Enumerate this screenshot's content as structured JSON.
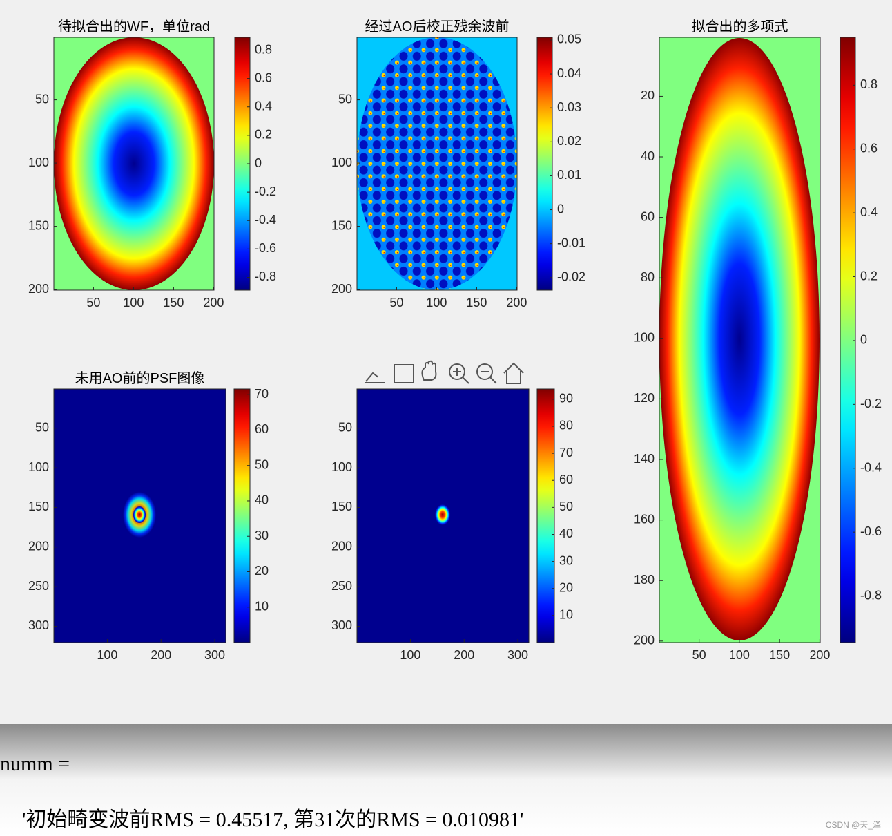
{
  "chart_data": [
    {
      "type": "heatmap",
      "title": "待拟合出的WF，单位rad",
      "xlim": [
        0.5,
        200.5
      ],
      "ylim": [
        0.5,
        200.5
      ],
      "xticks": [
        50,
        100,
        150,
        200
      ],
      "yticks": [
        50,
        100,
        150,
        200
      ],
      "clim": [
        -0.89,
        0.89
      ],
      "cticks": [
        -0.8,
        -0.6,
        -0.4,
        -0.2,
        0,
        0.2,
        0.4,
        0.6,
        0.8
      ],
      "colormap": "jet"
    },
    {
      "type": "heatmap",
      "title": "经过AO后校正残余波前",
      "xlim": [
        0.5,
        200.5
      ],
      "ylim": [
        0.5,
        200.5
      ],
      "xticks": [
        50,
        100,
        150,
        200
      ],
      "yticks": [
        50,
        100,
        150,
        200
      ],
      "clim": [
        -0.0237,
        0.0508
      ],
      "cticks": [
        -0.02,
        -0.01,
        0,
        0.01,
        0.02,
        0.03,
        0.04,
        0.05
      ],
      "colormap": "jet"
    },
    {
      "type": "heatmap",
      "title": "拟合出的多项式",
      "xlim": [
        0.5,
        200.5
      ],
      "ylim": [
        0.5,
        200.5
      ],
      "xticks": [
        50,
        100,
        150,
        200
      ],
      "yticks": [
        20,
        40,
        60,
        80,
        100,
        120,
        140,
        160,
        180,
        200
      ],
      "clim": [
        -0.946,
        0.95
      ],
      "cticks": [
        -0.8,
        -0.6,
        -0.4,
        -0.2,
        0,
        0.2,
        0.4,
        0.6,
        0.8
      ],
      "colormap": "jet"
    },
    {
      "type": "heatmap",
      "title": "未用AO前的PSF图像",
      "xlim": [
        0.5,
        320.5
      ],
      "ylim": [
        0.5,
        320.5
      ],
      "xticks": [
        100,
        200,
        300
      ],
      "yticks": [
        50,
        100,
        150,
        200,
        250,
        300
      ],
      "clim": [
        0,
        71.6
      ],
      "cticks": [
        10,
        20,
        30,
        40,
        50,
        60,
        70
      ],
      "colormap": "jet"
    },
    {
      "type": "heatmap",
      "xlim": [
        0.5,
        320.5
      ],
      "ylim": [
        0.5,
        320.5
      ],
      "xticks": [
        100,
        200,
        300
      ],
      "yticks": [
        50,
        100,
        150,
        200,
        250,
        300
      ],
      "clim": [
        0,
        93.8
      ],
      "cticks": [
        10,
        20,
        30,
        40,
        50,
        60,
        70,
        80,
        90
      ],
      "colormap": "jet"
    }
  ],
  "console": {
    "variable": "numm =",
    "output": "'初始畸变波前RMS = 0.45517, 第31次的RMS = 0.010981'",
    "watermark": "CSDN @天_泽"
  }
}
